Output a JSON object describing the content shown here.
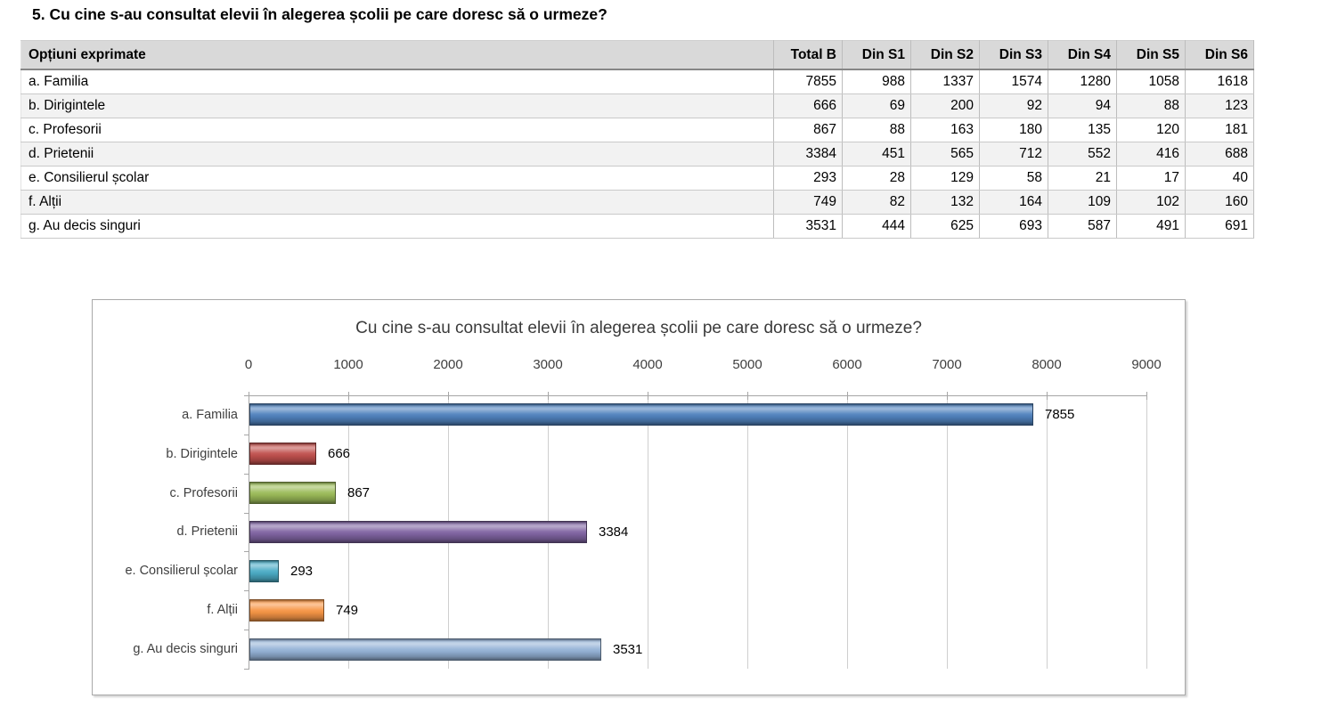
{
  "heading": "5. Cu cine s-au consultat elevii în alegerea școlii pe care doresc să o urmeze?",
  "table": {
    "header": [
      "Opțiuni exprimate",
      "Total B",
      "Din S1",
      "Din S2",
      "Din S3",
      "Din S4",
      "Din S5",
      "Din S6"
    ],
    "rows": [
      {
        "label": "a. Familia",
        "values": [
          7855,
          988,
          1337,
          1574,
          1280,
          1058,
          1618
        ]
      },
      {
        "label": "b. Dirigintele",
        "values": [
          666,
          69,
          200,
          92,
          94,
          88,
          123
        ]
      },
      {
        "label": "c. Profesorii",
        "values": [
          867,
          88,
          163,
          180,
          135,
          120,
          181
        ]
      },
      {
        "label": "d. Prietenii",
        "values": [
          3384,
          451,
          565,
          712,
          552,
          416,
          688
        ]
      },
      {
        "label": "e. Consilierul școlar",
        "values": [
          293,
          28,
          129,
          58,
          21,
          17,
          40
        ]
      },
      {
        "label": "f. Alții",
        "values": [
          749,
          82,
          132,
          164,
          109,
          102,
          160
        ]
      },
      {
        "label": "g. Au decis singuri",
        "values": [
          3531,
          444,
          625,
          693,
          587,
          491,
          691
        ]
      }
    ]
  },
  "chart_data": {
    "type": "bar",
    "orientation": "horizontal",
    "title": "Cu cine s-au consultat elevii în alegerea școlii pe care doresc să o urmeze?",
    "categories": [
      "a. Familia",
      "b. Dirigintele",
      "c. Profesorii",
      "d. Prietenii",
      "e. Consilierul școlar",
      "f. Alții",
      "g. Au decis singuri"
    ],
    "values": [
      7855,
      666,
      867,
      3384,
      293,
      749,
      3531
    ],
    "data_labels": [
      "7855",
      "666",
      "867",
      "3384",
      "293",
      "749",
      "3531"
    ],
    "bar_colors": [
      "#4F81BD",
      "#C0504D",
      "#9BBB59",
      "#8064A2",
      "#4BACC6",
      "#F79646",
      "#95B3D7"
    ],
    "xlabel": "",
    "ylabel": "",
    "xlim": [
      0,
      9000
    ],
    "x_ticks": [
      0,
      1000,
      2000,
      3000,
      4000,
      5000,
      6000,
      7000,
      8000,
      9000
    ],
    "grid": true,
    "legend_position": "none",
    "value_axis_position": "top"
  }
}
